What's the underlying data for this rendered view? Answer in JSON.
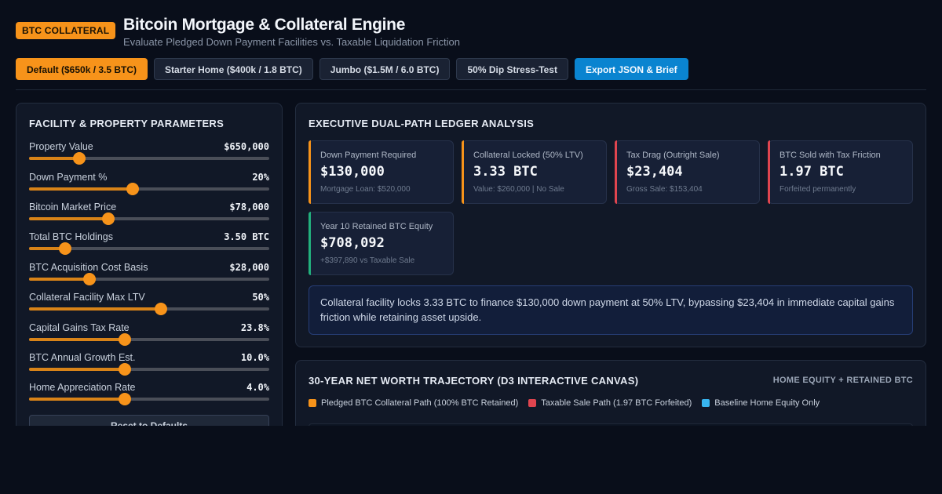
{
  "header": {
    "badge": "BTC COLLATERAL",
    "title": "Bitcoin Mortgage & Collateral Engine",
    "subtitle": "Evaluate Pledged Down Payment Facilities vs. Taxable Liquidation Friction"
  },
  "presets": [
    {
      "label": "Default ($650k / 3.5 BTC)",
      "state": "active"
    },
    {
      "label": "Starter Home ($400k / 1.8 BTC)",
      "state": "normal"
    },
    {
      "label": "Jumbo ($1.5M / 6.0 BTC)",
      "state": "normal"
    },
    {
      "label": "50% Dip Stress-Test",
      "state": "normal"
    },
    {
      "label": "Export JSON & Brief",
      "state": "export"
    }
  ],
  "params": {
    "title": "FACILITY & PROPERTY PARAMETERS",
    "items": [
      {
        "label": "Property Value",
        "value": "$650,000",
        "level": 0.21
      },
      {
        "label": "Down Payment %",
        "value": "20%",
        "level": 0.43
      },
      {
        "label": "Bitcoin Market Price",
        "value": "$78,000",
        "level": 0.33
      },
      {
        "label": "Total BTC Holdings",
        "value": "3.50 BTC",
        "level": 0.15
      },
      {
        "label": "BTC Acquisition Cost Basis",
        "value": "$28,000",
        "level": 0.25
      },
      {
        "label": "Collateral Facility Max LTV",
        "value": "50%",
        "level": 0.55
      },
      {
        "label": "Capital Gains Tax Rate",
        "value": "23.8%",
        "level": 0.4
      },
      {
        "label": "BTC Annual Growth Est.",
        "value": "10.0%",
        "level": 0.4
      },
      {
        "label": "Home Appreciation Rate",
        "value": "4.0%",
        "level": 0.4
      }
    ],
    "reset_label": "Reset to Defaults"
  },
  "ledger": {
    "title": "EXECUTIVE DUAL-PATH LEDGER ANALYSIS",
    "kpis": [
      {
        "label": "Down Payment Required",
        "value": "$130,000",
        "sub": "Mortgage Loan: $520,000",
        "accent": "#f7931a"
      },
      {
        "label": "Collateral Locked (50% LTV)",
        "value": "3.33 BTC",
        "sub": "Value: $260,000 | No Sale",
        "accent": "#f7931a"
      },
      {
        "label": "Tax Drag (Outright Sale)",
        "value": "$23,404",
        "sub": "Gross Sale: $153,404",
        "accent": "#e0454f"
      },
      {
        "label": "BTC Sold with Tax Friction",
        "value": "1.97 BTC",
        "sub": "Forfeited permanently",
        "accent": "#e0454f"
      },
      {
        "label": "Year 10 Retained BTC Equity",
        "value": "$708,092",
        "sub": "+$397,890 vs Taxable Sale",
        "accent": "#22b07d"
      }
    ],
    "summary": "Collateral facility locks 3.33 BTC to finance $130,000 down payment at 50% LTV, bypassing $23,404 in immediate capital gains friction while retaining asset upside."
  },
  "trajectory": {
    "title": "30-YEAR NET WORTH TRAJECTORY (D3 INTERACTIVE CANVAS)",
    "right_label": "HOME EQUITY + RETAINED BTC",
    "legend": [
      {
        "label": "Pledged BTC Collateral Path (100% BTC Retained)",
        "color": "#f7931a"
      },
      {
        "label": "Taxable Sale Path (1.97 BTC Forfeited)",
        "color": "#e0454f"
      },
      {
        "label": "Baseline Home Equity Only",
        "color": "#38b6f0"
      }
    ]
  }
}
